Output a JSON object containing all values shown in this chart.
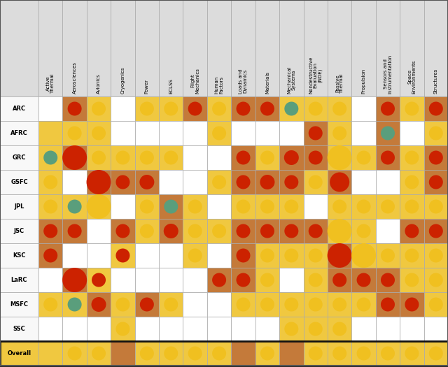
{
  "rows": [
    "ARC",
    "AFRC",
    "GRC",
    "GSFC",
    "JPL",
    "JSC",
    "KSC",
    "LaRC",
    "MSFC",
    "SSC",
    "Overall"
  ],
  "cols": [
    "Active\nThermal",
    "Aerosciences",
    "Avionics",
    "Cryogenics",
    "Power",
    "ECLSS",
    "Flight\nMechanics",
    "Human\nFactors",
    "Loads and\nDynamics",
    "Materials",
    "Mechanical\nSystems",
    "Nondestructive\nEvaluation\n(NDE)",
    "Passive\nThermal",
    "Propulsion",
    "Sensors and\nInstrumentation",
    "Space\nEnvironments",
    "Structures"
  ],
  "cell_bg": [
    [
      "white",
      "brown",
      "yellow",
      "white",
      "yellow",
      "yellow",
      "brown",
      "yellow",
      "brown",
      "brown",
      "yellow",
      "yellow",
      "yellow",
      "white",
      "brown",
      "yellow",
      "brown"
    ],
    [
      "yellow",
      "yellow",
      "yellow",
      "white",
      "white",
      "white",
      "white",
      "yellow",
      "white",
      "white",
      "white",
      "brown",
      "yellow",
      "white",
      "brown",
      "white",
      "yellow"
    ],
    [
      "yellow",
      "brown",
      "yellow",
      "yellow",
      "yellow",
      "yellow",
      "white",
      "white",
      "brown",
      "yellow",
      "brown",
      "brown",
      "yellow",
      "yellow",
      "brown",
      "yellow",
      "brown"
    ],
    [
      "yellow",
      "white",
      "brown",
      "brown",
      "brown",
      "white",
      "white",
      "yellow",
      "brown",
      "brown",
      "brown",
      "yellow",
      "brown",
      "white",
      "white",
      "yellow",
      "brown"
    ],
    [
      "yellow",
      "yellow",
      "yellow",
      "white",
      "yellow",
      "brown",
      "yellow",
      "white",
      "yellow",
      "yellow",
      "yellow",
      "white",
      "yellow",
      "yellow",
      "yellow",
      "yellow",
      "yellow"
    ],
    [
      "brown",
      "brown",
      "white",
      "brown",
      "yellow",
      "brown",
      "yellow",
      "yellow",
      "brown",
      "brown",
      "brown",
      "brown",
      "yellow",
      "yellow",
      "white",
      "brown",
      "brown"
    ],
    [
      "brown",
      "white",
      "white",
      "yellow",
      "white",
      "white",
      "yellow",
      "white",
      "brown",
      "yellow",
      "yellow",
      "yellow",
      "brown",
      "yellow",
      "yellow",
      "yellow",
      "yellow"
    ],
    [
      "white",
      "brown",
      "yellow",
      "white",
      "white",
      "white",
      "white",
      "brown",
      "brown",
      "yellow",
      "white",
      "yellow",
      "brown",
      "brown",
      "brown",
      "yellow",
      "yellow"
    ],
    [
      "yellow",
      "yellow",
      "brown",
      "yellow",
      "brown",
      "yellow",
      "white",
      "white",
      "yellow",
      "yellow",
      "yellow",
      "yellow",
      "yellow",
      "yellow",
      "brown",
      "brown",
      "yellow"
    ],
    [
      "white",
      "white",
      "white",
      "yellow",
      "white",
      "white",
      "white",
      "white",
      "white",
      "white",
      "yellow",
      "yellow",
      "yellow",
      "white",
      "white",
      "white",
      "white"
    ],
    [
      "yellow",
      "yellow",
      "yellow",
      "brown",
      "yellow",
      "yellow",
      "yellow",
      "yellow",
      "brown",
      "yellow",
      "brown",
      "yellow",
      "yellow",
      "yellow",
      "yellow",
      "yellow",
      "yellow"
    ]
  ],
  "circles": [
    [
      null,
      [
        "red",
        1.0
      ],
      [
        "yellow",
        1.0
      ],
      null,
      [
        "yellow",
        1.0
      ],
      [
        "yellow",
        1.0
      ],
      [
        "red",
        1.0
      ],
      [
        "yellow",
        1.0
      ],
      [
        "red",
        1.0
      ],
      [
        "red",
        1.0
      ],
      [
        "green",
        1.0
      ],
      [
        "yellow",
        1.0
      ],
      [
        "yellow",
        1.0
      ],
      null,
      [
        "red",
        1.0
      ],
      [
        "yellow",
        1.0
      ],
      [
        "red",
        1.0
      ]
    ],
    [
      null,
      [
        "yellow",
        1.0
      ],
      [
        "yellow",
        1.0
      ],
      null,
      null,
      null,
      null,
      [
        "yellow",
        1.0
      ],
      null,
      null,
      null,
      [
        "red",
        1.0
      ],
      [
        "yellow",
        1.0
      ],
      null,
      [
        "green",
        1.0
      ],
      null,
      [
        "yellow",
        1.0
      ]
    ],
    [
      [
        "green",
        1.0
      ],
      [
        "red",
        2.5
      ],
      [
        "yellow",
        1.0
      ],
      [
        "yellow",
        1.0
      ],
      [
        "yellow",
        1.0
      ],
      [
        "yellow",
        1.0
      ],
      null,
      null,
      [
        "red",
        1.0
      ],
      [
        "yellow",
        1.0
      ],
      [
        "red",
        1.5
      ],
      [
        "red",
        1.0
      ],
      [
        "yellow",
        2.5
      ],
      [
        "yellow",
        1.0
      ],
      [
        "red",
        1.0
      ],
      [
        "yellow",
        1.0
      ],
      [
        "red",
        1.0
      ]
    ],
    [
      [
        "yellow",
        1.0
      ],
      null,
      [
        "red",
        2.5
      ],
      [
        "red",
        1.0
      ],
      [
        "red",
        1.5
      ],
      null,
      null,
      [
        "yellow",
        1.0
      ],
      [
        "red",
        1.0
      ],
      [
        "red",
        1.5
      ],
      [
        "red",
        1.0
      ],
      [
        "yellow",
        1.0
      ],
      [
        "red",
        2.0
      ],
      null,
      null,
      [
        "yellow",
        1.0
      ],
      [
        "red",
        1.0
      ]
    ],
    [
      [
        "yellow",
        1.0
      ],
      [
        "green",
        1.0
      ],
      [
        "yellow",
        2.5
      ],
      null,
      [
        "yellow",
        1.0
      ],
      [
        "green",
        1.0
      ],
      [
        "yellow",
        1.0
      ],
      null,
      [
        "yellow",
        1.0
      ],
      [
        "yellow",
        1.0
      ],
      [
        "yellow",
        1.0
      ],
      null,
      [
        "yellow",
        1.0
      ],
      [
        "yellow",
        1.0
      ],
      [
        "yellow",
        1.0
      ],
      [
        "yellow",
        1.0
      ],
      [
        "yellow",
        1.0
      ]
    ],
    [
      [
        "red",
        1.0
      ],
      [
        "red",
        1.0
      ],
      null,
      [
        "red",
        1.0
      ],
      [
        "yellow",
        1.0
      ],
      [
        "red",
        1.5
      ],
      [
        "yellow",
        1.0
      ],
      [
        "yellow",
        1.0
      ],
      [
        "red",
        1.0
      ],
      [
        "red",
        1.0
      ],
      [
        "red",
        1.0
      ],
      [
        "red",
        1.0
      ],
      [
        "yellow",
        2.5
      ],
      [
        "yellow",
        1.0
      ],
      null,
      [
        "red",
        1.0
      ],
      [
        "red",
        1.0
      ]
    ],
    [
      [
        "red",
        1.0
      ],
      null,
      null,
      [
        "red",
        1.0
      ],
      null,
      null,
      [
        "yellow",
        1.0
      ],
      null,
      [
        "red",
        1.0
      ],
      [
        "yellow",
        1.0
      ],
      [
        "yellow",
        1.0
      ],
      [
        "yellow",
        1.0
      ],
      [
        "red",
        2.5
      ],
      [
        "yellow",
        2.5
      ],
      [
        "yellow",
        1.0
      ],
      [
        "yellow",
        1.0
      ],
      [
        "yellow",
        1.0
      ]
    ],
    [
      null,
      [
        "red",
        2.5
      ],
      [
        "red",
        1.0
      ],
      null,
      null,
      null,
      null,
      [
        "red",
        1.0
      ],
      [
        "red",
        1.0
      ],
      [
        "yellow",
        1.0
      ],
      null,
      [
        "yellow",
        1.0
      ],
      [
        "red",
        1.0
      ],
      [
        "red",
        1.0
      ],
      [
        "red",
        1.0
      ],
      [
        "yellow",
        1.0
      ],
      [
        "yellow",
        1.0
      ]
    ],
    [
      [
        "yellow",
        1.0
      ],
      [
        "green",
        1.0
      ],
      [
        "red",
        1.5
      ],
      [
        "yellow",
        1.0
      ],
      [
        "red",
        1.0
      ],
      [
        "yellow",
        1.0
      ],
      null,
      null,
      [
        "yellow",
        1.0
      ],
      [
        "yellow",
        1.0
      ],
      [
        "yellow",
        1.0
      ],
      [
        "yellow",
        1.0
      ],
      [
        "yellow",
        1.0
      ],
      [
        "yellow",
        1.0
      ],
      [
        "red",
        1.0
      ],
      [
        "red",
        1.0
      ],
      [
        "yellow",
        1.0
      ]
    ],
    [
      null,
      null,
      null,
      [
        "yellow",
        1.0
      ],
      null,
      null,
      null,
      null,
      null,
      null,
      [
        "yellow",
        1.0
      ],
      [
        "yellow",
        1.0
      ],
      [
        "yellow",
        1.0
      ],
      null,
      null,
      null,
      null
    ],
    [
      null,
      [
        "yellow",
        1.0
      ],
      [
        "yellow",
        1.0
      ],
      null,
      [
        "yellow",
        1.0
      ],
      [
        "yellow",
        1.0
      ],
      [
        "yellow",
        1.0
      ],
      [
        "yellow",
        1.0
      ],
      null,
      [
        "yellow",
        1.0
      ],
      null,
      [
        "yellow",
        1.0
      ],
      [
        "yellow",
        1.0
      ],
      [
        "yellow",
        1.0
      ],
      [
        "yellow",
        1.0
      ],
      [
        "yellow",
        1.0
      ],
      [
        "yellow",
        1.0
      ]
    ]
  ],
  "bg_map": {
    "white": "#ffffff",
    "brown": "#c47a3a",
    "yellow": "#f0c840"
  },
  "circle_colors": {
    "red": "#cc2200",
    "yellow": "#f0c020",
    "green": "#5a9e7c"
  },
  "header_bg": "#dcdcdc",
  "fig_bg": "#d8d8d8",
  "grid_color": "#aaaaaa",
  "label_color": "#000000",
  "row_label_bg": "#f8f8f8",
  "overall_bg": "#f0c840"
}
